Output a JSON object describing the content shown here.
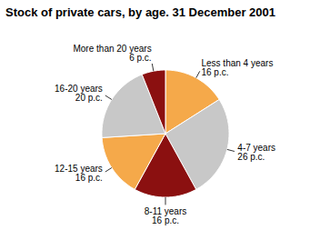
{
  "chart_data": {
    "type": "pie",
    "title": "Stock of private cars, by age. 31 December 2001",
    "categories": [
      "Less than 4 years\n16 p.c.",
      "4-7 years\n26 p.c.",
      "8-11 years\n16 p.c.",
      "12-15 years\n16 p.c.",
      "16-20 years\n20 p.c.",
      "More than 20 years\n6 p.c."
    ],
    "values": [
      16,
      26,
      16,
      16,
      20,
      6
    ],
    "colors": [
      "#F5A94A",
      "#C8C8C8",
      "#8B1010",
      "#F5A94A",
      "#C8C8C8",
      "#8B1010"
    ]
  }
}
